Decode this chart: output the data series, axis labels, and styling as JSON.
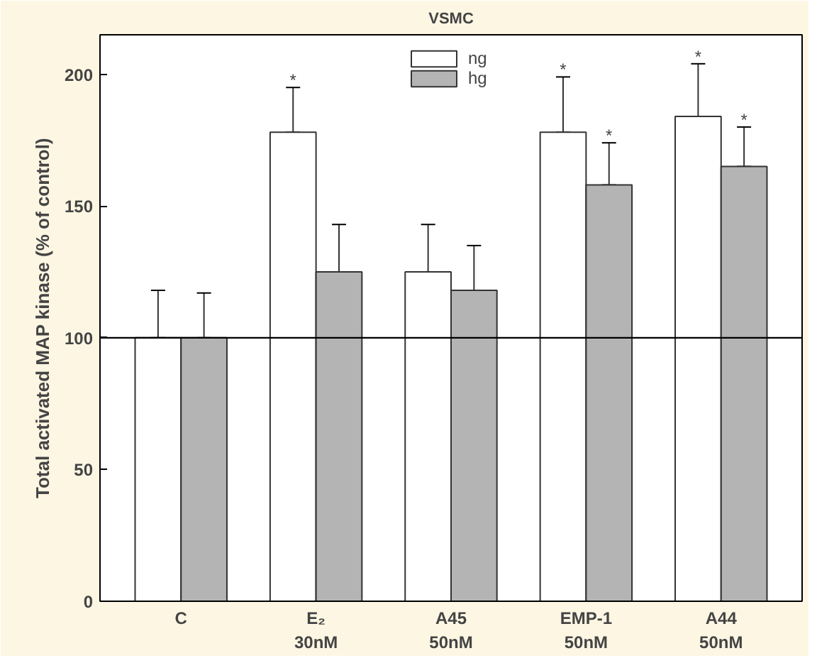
{
  "chart_data": {
    "type": "bar",
    "title": "VSMC",
    "ylabel": "Total activated MAP kinase (% of control)",
    "categories": [
      "C",
      "E₂\n30nM",
      "A45\n50nM",
      "EMP-1\n50nM",
      "A44\n50nM"
    ],
    "series": [
      {
        "name": "ng",
        "color": "#ffffff",
        "values": [
          100,
          178,
          125,
          178,
          184
        ],
        "errors": [
          18,
          17,
          18,
          21,
          20
        ],
        "value_labels": [
          null,
          "*",
          null,
          "*",
          "*"
        ]
      },
      {
        "name": "hg",
        "color": "#b4b4b4",
        "values": [
          100,
          125,
          118,
          158,
          165
        ],
        "errors": [
          17,
          18,
          17,
          16,
          15
        ],
        "value_labels": [
          null,
          null,
          null,
          "*",
          "*"
        ]
      }
    ],
    "ylim": [
      0,
      215
    ],
    "yticks": [
      0,
      50,
      100,
      150,
      200
    ],
    "ref_lines": [
      {
        "axis": "y",
        "value": 100
      }
    ],
    "legend": "top",
    "grid": false
  }
}
